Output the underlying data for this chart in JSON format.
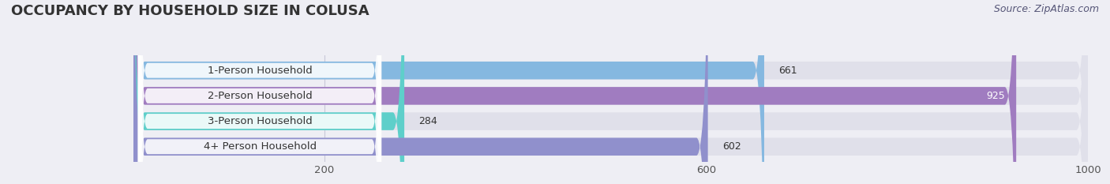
{
  "title": "OCCUPANCY BY HOUSEHOLD SIZE IN COLUSA",
  "source": "Source: ZipAtlas.com",
  "categories": [
    "1-Person Household",
    "2-Person Household",
    "3-Person Household",
    "4+ Person Household"
  ],
  "values": [
    661,
    925,
    284,
    602
  ],
  "bar_colors": [
    "#85b8e0",
    "#a07cc0",
    "#5ecfca",
    "#9090cc"
  ],
  "xlim_max": 1000,
  "xticks": [
    200,
    600,
    1000
  ],
  "background_color": "#eeeef4",
  "bar_bg_color": "#e0e0ea",
  "title_fontsize": 13,
  "source_fontsize": 9,
  "label_fontsize": 9.5,
  "value_fontsize": 9,
  "fig_width": 14.06,
  "fig_height": 2.33
}
